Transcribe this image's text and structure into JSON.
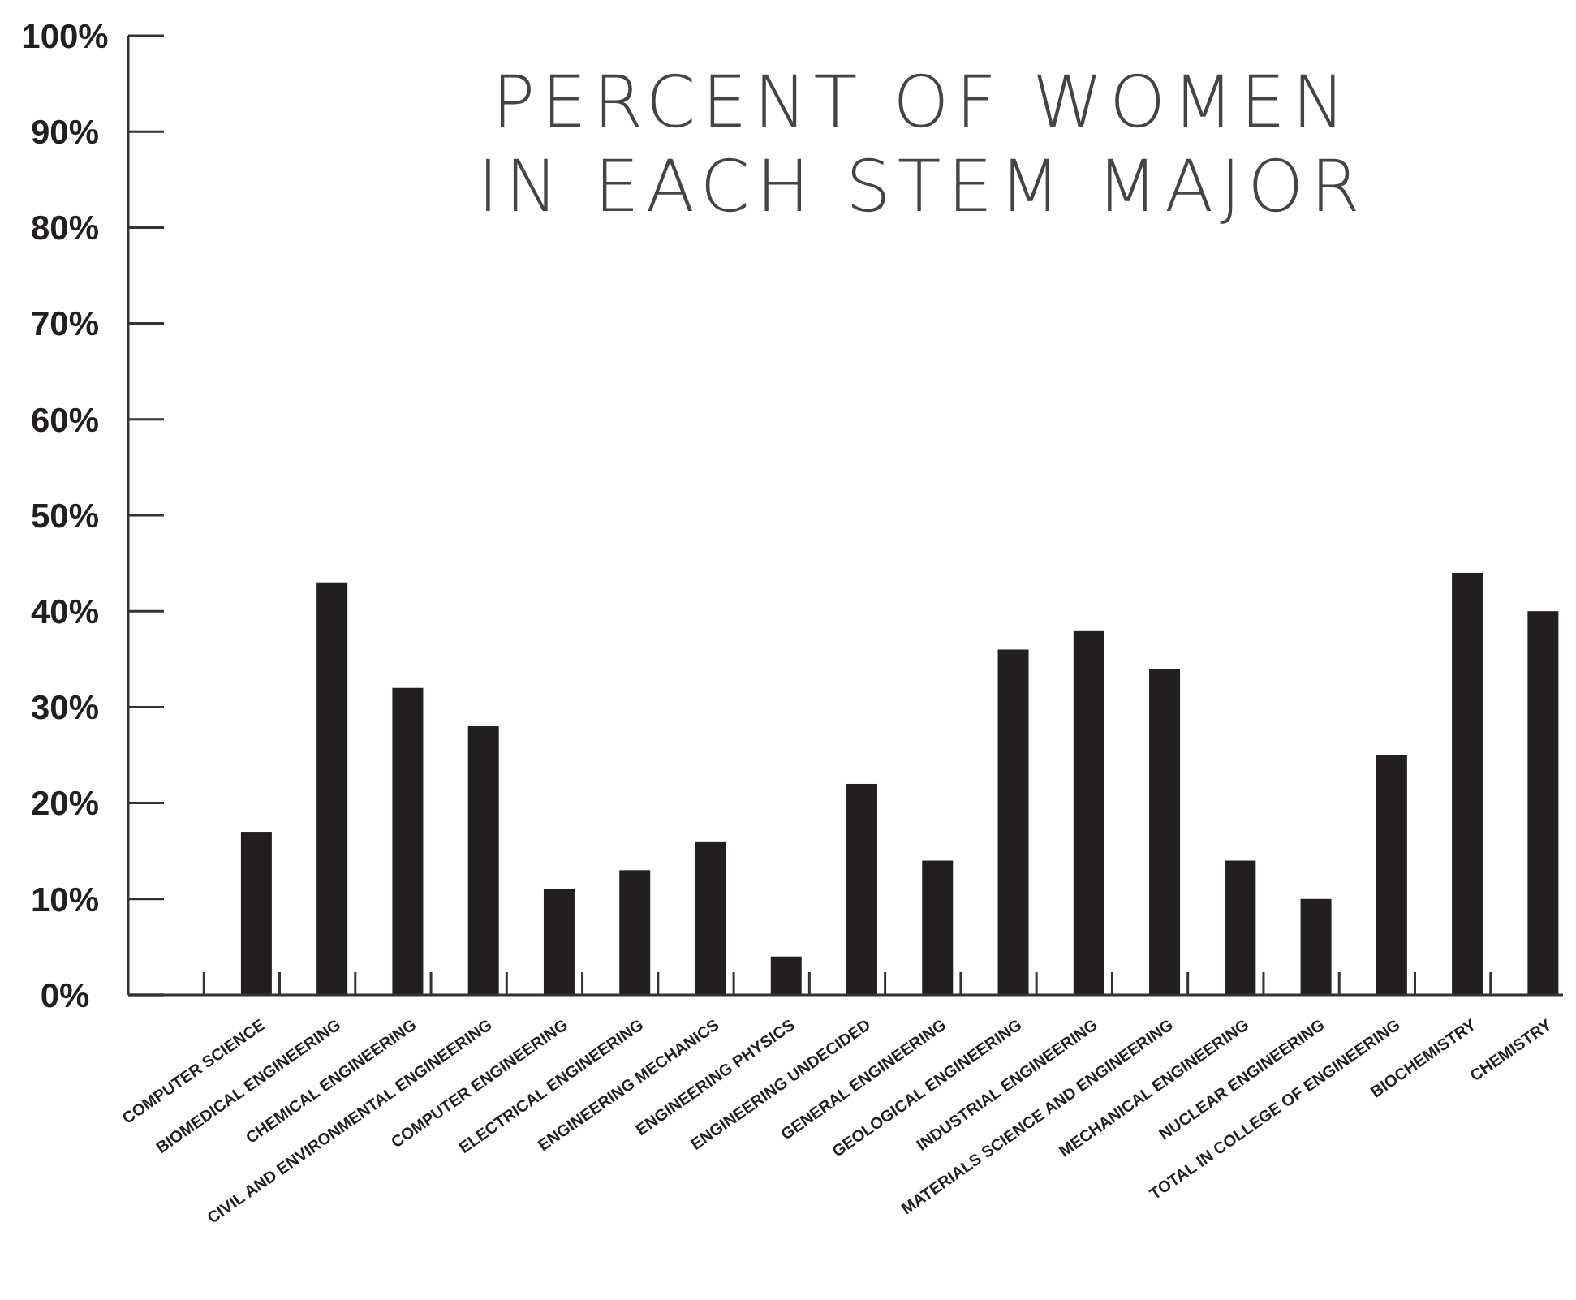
{
  "chart_data": {
    "type": "bar",
    "title": "PERCENT OF WOMEN IN EACH STEM MAJOR",
    "categories": [
      "COMPUTER SCIENCE",
      "BIOMEDICAL ENGINEERING",
      "CHEMICAL ENGINEERING",
      "CIVIL AND ENVIRONMENTAL ENGINEERING",
      "COMPUTER ENGINEERING",
      "ELECTRICAL ENGINEERING",
      "ENGINEERING MECHANICS",
      "ENGINEERING PHYSICS",
      "ENGINEERING UNDECIDED",
      "GENERAL ENGINEERING",
      "GEOLOGICAL ENGINEERING",
      "INDUSTRIAL ENGINEERING",
      "MATERIALS SCIENCE AND ENGINEERING",
      "MECHANICAL ENGINEERING",
      "NUCLEAR ENGINEERING",
      "TOTAL IN COLLEGE OF ENGINEERING",
      "BIOCHEMISTRY",
      "CHEMISTRY"
    ],
    "values": [
      17,
      43,
      32,
      28,
      11,
      13,
      16,
      4,
      22,
      14,
      36,
      38,
      34,
      14,
      10,
      25,
      44,
      40
    ],
    "color": "#231f20",
    "ylim": [
      0,
      100
    ],
    "yticks": [
      {
        "value": 0,
        "label": "0%"
      },
      {
        "value": 10,
        "label": "10%"
      },
      {
        "value": 20,
        "label": "20%"
      },
      {
        "value": 30,
        "label": "30%"
      },
      {
        "value": 40,
        "label": "40%"
      },
      {
        "value": 50,
        "label": "50%"
      },
      {
        "value": 60,
        "label": "60%"
      },
      {
        "value": 70,
        "label": "70%"
      },
      {
        "value": 80,
        "label": "80%"
      },
      {
        "value": 90,
        "label": "90%"
      },
      {
        "value": 100,
        "label": "100%"
      }
    ],
    "grid": false
  }
}
